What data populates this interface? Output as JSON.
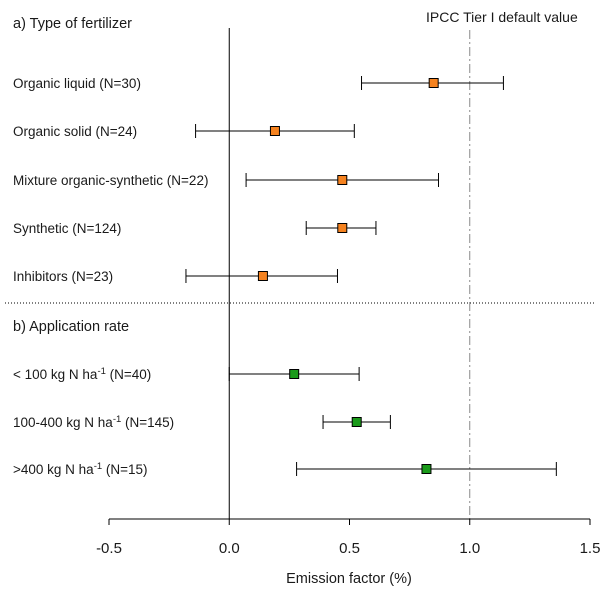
{
  "chart_data": {
    "type": "forest",
    "xlabel": "Emission factor (%)",
    "xlim": [
      -0.5,
      1.5
    ],
    "xticks": [
      "-0.5",
      "0.0",
      "0.5",
      "1.0",
      "1.5"
    ],
    "xtick_values": [
      -0.5,
      0.0,
      0.5,
      1.0,
      1.5
    ],
    "reference_line": {
      "value": 1.0,
      "label": "IPCC Tier I default value",
      "style": "dash-dot"
    },
    "zero_line": 0.0,
    "groups": [
      {
        "title": "a) Type of fertilizer",
        "color": "#f5821f",
        "rows": [
          {
            "label": "Organic liquid (N=30)",
            "label_parts": [
              "Organic liquid (N=30)"
            ],
            "estimate": 0.85,
            "low": 0.55,
            "high": 1.14
          },
          {
            "label": "Organic solid (N=24)",
            "label_parts": [
              "Organic solid (N=24)"
            ],
            "estimate": 0.19,
            "low": -0.14,
            "high": 0.52
          },
          {
            "label": "Mixture organic-synthetic (N=22)",
            "label_parts": [
              "Mixture organic-synthetic (N=22)"
            ],
            "estimate": 0.47,
            "low": 0.07,
            "high": 0.87
          },
          {
            "label": "Synthetic (N=124)",
            "label_parts": [
              "Synthetic (N=124)"
            ],
            "estimate": 0.47,
            "low": 0.32,
            "high": 0.61
          },
          {
            "label": "Inhibitors (N=23)",
            "label_parts": [
              "Inhibitors (N=23)"
            ],
            "estimate": 0.14,
            "low": -0.18,
            "high": 0.45
          }
        ]
      },
      {
        "title": "b) Application rate",
        "color": "#1a9a1a",
        "rows": [
          {
            "label": "< 100 kg N ha-1 (N=40)",
            "label_parts": [
              "< 100 kg N ha",
              "-1",
              " (N=40)"
            ],
            "estimate": 0.27,
            "low": 0.0,
            "high": 0.54
          },
          {
            "label": "100-400 kg N ha-1 (N=145)",
            "label_parts": [
              "100-400 kg N ha",
              "-1",
              " (N=145)"
            ],
            "estimate": 0.53,
            "low": 0.39,
            "high": 0.67
          },
          {
            "label": ">400 kg N ha-1 (N=15)",
            "label_parts": [
              ">400 kg N ha",
              "-1",
              " (N=15)"
            ],
            "estimate": 0.82,
            "low": 0.28,
            "high": 1.36
          }
        ]
      }
    ]
  }
}
